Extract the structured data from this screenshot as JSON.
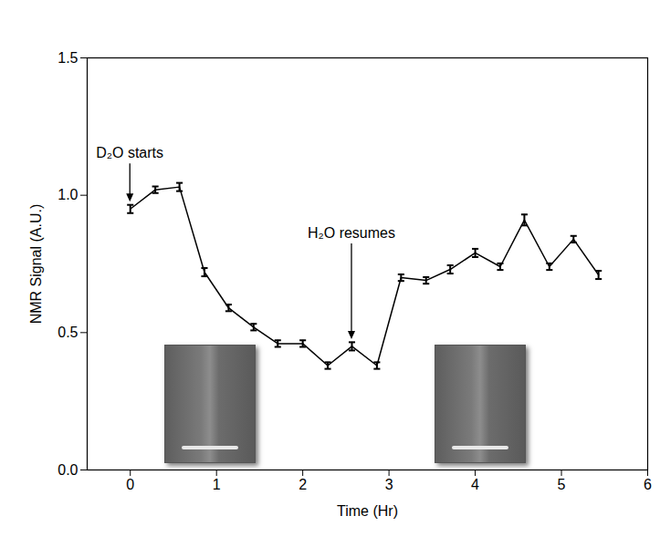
{
  "chart_data": {
    "type": "line",
    "x_label": "Time (Hr)",
    "y_label": "NMR Signal (A.U.)",
    "x": [
      0,
      0.29,
      0.57,
      0.86,
      1.14,
      1.43,
      1.71,
      2.0,
      2.29,
      2.57,
      2.86,
      3.14,
      3.43,
      3.71,
      4.0,
      4.29,
      4.57,
      4.86,
      5.14,
      5.43
    ],
    "values": [
      0.95,
      1.02,
      1.03,
      0.72,
      0.59,
      0.52,
      0.46,
      0.46,
      0.38,
      0.45,
      0.38,
      0.7,
      0.69,
      0.73,
      0.79,
      0.74,
      0.91,
      0.74,
      0.84,
      0.71
    ],
    "errors": [
      0.015,
      0.012,
      0.015,
      0.015,
      0.012,
      0.012,
      0.012,
      0.012,
      0.012,
      0.015,
      0.012,
      0.012,
      0.012,
      0.015,
      0.015,
      0.012,
      0.02,
      0.012,
      0.012,
      0.015
    ],
    "color": "#000000",
    "xlim": [
      -0.5,
      6
    ],
    "xticks": [
      0,
      1,
      2,
      3,
      4,
      5,
      6
    ],
    "ylim": [
      0,
      1.5
    ],
    "yticks": [
      {
        "value": 0,
        "label": "0.0"
      },
      0.5,
      {
        "value": 1,
        "label": "1.0"
      },
      {
        "value": 1.5,
        "label": "1.5"
      }
    ],
    "annotations": [
      {
        "text": "D₂O starts",
        "x": 0
      },
      {
        "text": "H₂O resumes",
        "x": 2.57
      }
    ]
  }
}
